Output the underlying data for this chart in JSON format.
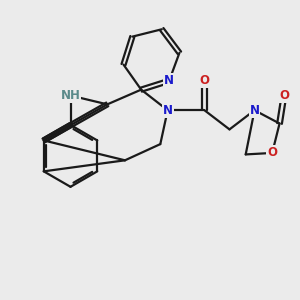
{
  "background_color": "#ebebeb",
  "bond_color": "#1a1a1a",
  "bond_width": 1.6,
  "atom_colors": {
    "N": "#1a1acc",
    "NH": "#5a8a8a",
    "O": "#cc2222"
  },
  "font_size_atom": 8.5,
  "figsize": [
    3.0,
    3.0
  ],
  "dpi": 100
}
